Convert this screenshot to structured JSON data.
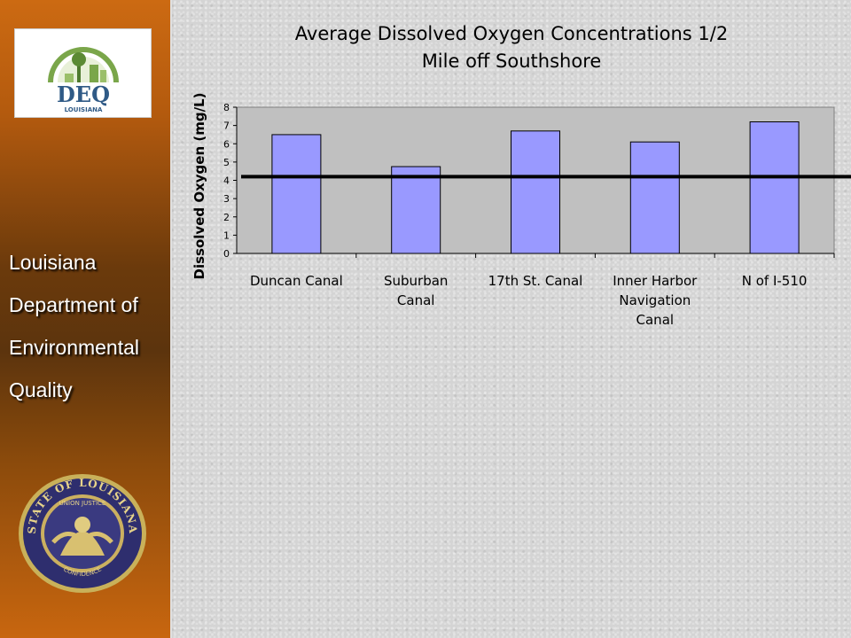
{
  "sidebar": {
    "logo": {
      "text": "DEQ",
      "subtext": "LOUISIANA"
    },
    "agency_lines": [
      "Louisiana",
      "Department of",
      "Environmental",
      "Quality"
    ],
    "seal": {
      "text_top": "STATE OF LOUISIANA",
      "text_motto": "UNION JUSTICE",
      "text_bottom": "CONFIDENCE"
    }
  },
  "chart_data": {
    "type": "bar",
    "title_lines": [
      "Average Dissolved Oxygen Concentrations 1/2",
      "Mile off Southshore"
    ],
    "ylabel": "Dissolved Oxygen (mg/L)",
    "xlabel": "",
    "ylim": [
      0,
      8
    ],
    "yticks": [
      0,
      1,
      2,
      3,
      4,
      5,
      6,
      7,
      8
    ],
    "categories": [
      [
        "Duncan Canal"
      ],
      [
        "Suburban",
        "Canal"
      ],
      [
        "17th St. Canal"
      ],
      [
        "Inner Harbor",
        "Navigation",
        "Canal"
      ],
      [
        "N of I-510"
      ]
    ],
    "values": [
      6.5,
      4.75,
      6.7,
      6.1,
      7.2
    ],
    "reference_line": 4.2,
    "grid": false,
    "colors": {
      "bar": "#9999ff",
      "plot_bg": "#c0c0c0",
      "reference_line": "#000000"
    }
  }
}
